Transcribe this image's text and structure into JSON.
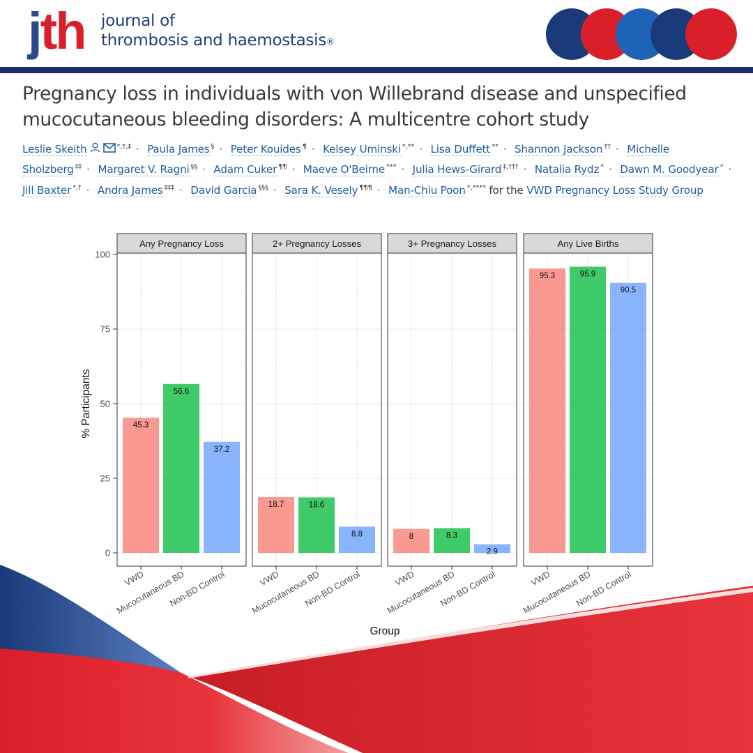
{
  "header": {
    "logo_j": "j",
    "logo_th": "th",
    "journal_line1": "journal of",
    "journal_line2": "thrombosis and haemostasis",
    "registered": "®",
    "circle_colors": [
      "#1a3a7a",
      "#d9202a",
      "#1e63b5",
      "#1a3a7a",
      "#d9202a"
    ]
  },
  "article": {
    "title": "Pregnancy loss in individuals with von Willebrand disease and unspecified mucocutaneous bleeding disorders: A multicentre cohort study",
    "authors": [
      {
        "name": "Leslie Skeith",
        "sup": "*,†,‡",
        "icons": [
          "person-icon",
          "mail-icon"
        ]
      },
      {
        "name": "Paula James",
        "sup": "§"
      },
      {
        "name": "Peter Kouides",
        "sup": "¶"
      },
      {
        "name": "Kelsey Uminski",
        "sup": "*,**"
      },
      {
        "name": "Lisa Duffett",
        "sup": "**"
      },
      {
        "name": "Shannon Jackson",
        "sup": "††"
      },
      {
        "name": "Michelle Sholzberg",
        "sup": "‡‡"
      },
      {
        "name": "Margaret V. Ragni",
        "sup": "§§"
      },
      {
        "name": "Adam Cuker",
        "sup": "¶¶"
      },
      {
        "name": "Maeve O'Beirne",
        "sup": "***"
      },
      {
        "name": "Julia Hews-Girard",
        "sup": "‡,†††"
      },
      {
        "name": "Natalia Rydz",
        "sup": "*"
      },
      {
        "name": "Dawn M. Goodyear",
        "sup": "*"
      },
      {
        "name": "Jill Baxter",
        "sup": "*,†"
      },
      {
        "name": "Andra James",
        "sup": "‡‡‡"
      },
      {
        "name": "David Garcia",
        "sup": "§§§"
      },
      {
        "name": "Sara K. Vesely",
        "sup": "¶¶¶"
      },
      {
        "name": "Man-Chiu Poon",
        "sup": "*,****"
      }
    ],
    "for_the": "for the",
    "group": "VWD Pregnancy Loss Study Group",
    "separator": "·"
  },
  "chart_data": {
    "type": "bar",
    "xlabel": "Group",
    "ylabel": "% Participants",
    "ylim": [
      0,
      100
    ],
    "yticks": [
      0,
      25,
      50,
      75,
      100
    ],
    "grid": true,
    "categories": [
      "VWD",
      "Mucocutaneous BD",
      "Non-BD Control"
    ],
    "category_colors": [
      "#f8766d",
      "#00ba38",
      "#619cff"
    ],
    "panels": [
      {
        "title": "Any Pregnancy Loss",
        "values": [
          45.3,
          56.6,
          37.2
        ],
        "labels": [
          "45.3",
          "56.6",
          "37.2"
        ]
      },
      {
        "title": "2+ Pregnancy Losses",
        "values": [
          18.7,
          18.6,
          8.8
        ],
        "labels": [
          "18.7",
          "18.6",
          "8.8"
        ]
      },
      {
        "title": "3+ Pregnancy Losses",
        "values": [
          8,
          8.3,
          2.9
        ],
        "labels": [
          "8",
          "8.3",
          "2.9"
        ]
      },
      {
        "title": "Any Live Births",
        "values": [
          95.3,
          95.9,
          90.5
        ],
        "labels": [
          "95.3",
          "95.9",
          "90.5"
        ]
      }
    ]
  }
}
